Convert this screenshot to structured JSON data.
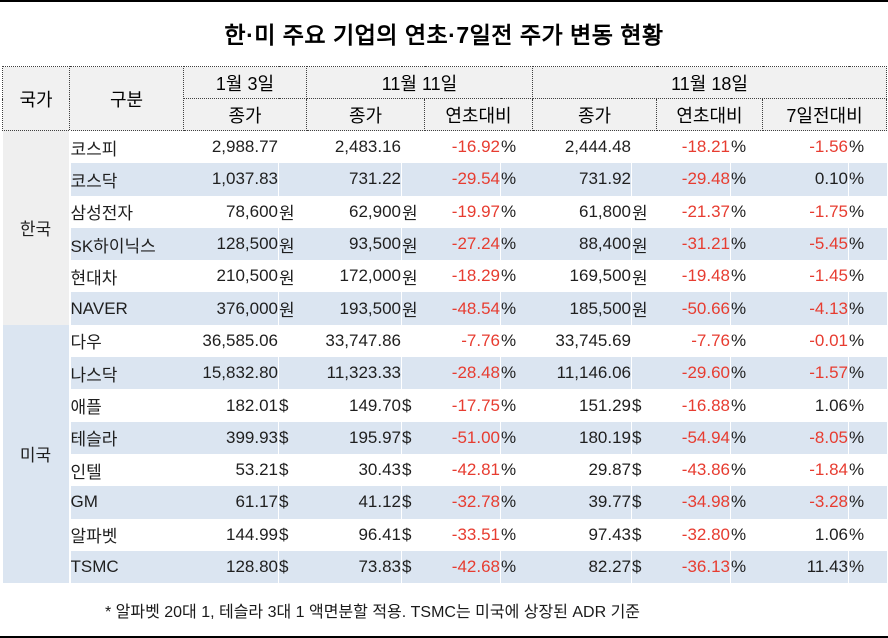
{
  "title": "한·미 주요 기업의 연초·7일전 주가 변동 현황",
  "footnote": "* 알파벳 20대 1, 테슬라 3대 1 액면분할 적용. TSMC는 미국에 상장된 ADR 기준",
  "colors": {
    "negative_value": "#e73c30",
    "stripe_row": "#dbe5f1",
    "korea_country_cell": "#efefef",
    "us_country_cell": "#dbe5f1",
    "header_bg": "#f1f1f1"
  },
  "table": {
    "header": {
      "country": "국가",
      "category": "구분",
      "jan3": "1월 3일",
      "nov11": "11월 11일",
      "nov18": "11월 18일",
      "close": "종가",
      "vs_start": "연초대비",
      "vs_7d": "7일전대비"
    },
    "pct_unit": "%",
    "groups": [
      {
        "country": "한국",
        "cls": "kr",
        "rows": [
          {
            "name": "코스피",
            "unit": "",
            "jan3": "2,988.77",
            "nov11": "2,483.16",
            "ytd11": "-16.92",
            "nov18": "2,444.48",
            "ytd18": "-18.21",
            "wow": "-1.56"
          },
          {
            "name": "코스닥",
            "unit": "",
            "jan3": "1,037.83",
            "nov11": "731.22",
            "ytd11": "-29.54",
            "nov18": "731.92",
            "ytd18": "-29.48",
            "wow": "0.10"
          },
          {
            "name": "삼성전자",
            "unit": "원",
            "jan3": "78,600",
            "nov11": "62,900",
            "ytd11": "-19.97",
            "nov18": "61,800",
            "ytd18": "-21.37",
            "wow": "-1.75"
          },
          {
            "name": "SK하이닉스",
            "unit": "원",
            "jan3": "128,500",
            "nov11": "93,500",
            "ytd11": "-27.24",
            "nov18": "88,400",
            "ytd18": "-31.21",
            "wow": "-5.45"
          },
          {
            "name": "현대차",
            "unit": "원",
            "jan3": "210,500",
            "nov11": "172,000",
            "ytd11": "-18.29",
            "nov18": "169,500",
            "ytd18": "-19.48",
            "wow": "-1.45"
          },
          {
            "name": "NAVER",
            "unit": "원",
            "jan3": "376,000",
            "nov11": "193,500",
            "ytd11": "-48.54",
            "nov18": "185,500",
            "ytd18": "-50.66",
            "wow": "-4.13"
          }
        ]
      },
      {
        "country": "미국",
        "cls": "us",
        "rows": [
          {
            "name": "다우",
            "unit": "",
            "jan3": "36,585.06",
            "nov11": "33,747.86",
            "ytd11": "-7.76",
            "nov18": "33,745.69",
            "ytd18": "-7.76",
            "wow": "-0.01"
          },
          {
            "name": "나스닥",
            "unit": "",
            "jan3": "15,832.80",
            "nov11": "11,323.33",
            "ytd11": "-28.48",
            "nov18": "11,146.06",
            "ytd18": "-29.60",
            "wow": "-1.57"
          },
          {
            "name": "애플",
            "unit": "$",
            "jan3": "182.01",
            "nov11": "149.70",
            "ytd11": "-17.75",
            "nov18": "151.29",
            "ytd18": "-16.88",
            "wow": "1.06"
          },
          {
            "name": "테슬라",
            "unit": "$",
            "jan3": "399.93",
            "nov11": "195.97",
            "ytd11": "-51.00",
            "nov18": "180.19",
            "ytd18": "-54.94",
            "wow": "-8.05"
          },
          {
            "name": "인텔",
            "unit": "$",
            "jan3": "53.21",
            "nov11": "30.43",
            "ytd11": "-42.81",
            "nov18": "29.87",
            "ytd18": "-43.86",
            "wow": "-1.84"
          },
          {
            "name": "GM",
            "unit": "$",
            "jan3": "61.17",
            "nov11": "41.12",
            "ytd11": "-32.78",
            "nov18": "39.77",
            "ytd18": "-34.98",
            "wow": "-3.28"
          },
          {
            "name": "알파벳",
            "unit": "$",
            "jan3": "144.99",
            "nov11": "96.41",
            "ytd11": "-33.51",
            "nov18": "97.43",
            "ytd18": "-32.80",
            "wow": "1.06"
          },
          {
            "name": "TSMC",
            "unit": "$",
            "jan3": "128.80",
            "nov11": "73.83",
            "ytd11": "-42.68",
            "nov18": "82.27",
            "ytd18": "-36.13",
            "wow": "11.43"
          }
        ]
      }
    ]
  },
  "chart_data": {
    "type": "table",
    "title": "한·미 주요 기업의 연초·7일전 주가 변동 현황",
    "columns": [
      "국가",
      "구분",
      "1월 3일 종가",
      "11월 11일 종가",
      "11월 11일 연초대비 %",
      "11월 18일 종가",
      "11월 18일 연초대비 %",
      "11월 18일 7일전대비 %"
    ],
    "rows": [
      [
        "한국",
        "코스피",
        2988.77,
        2483.16,
        -16.92,
        2444.48,
        -18.21,
        -1.56
      ],
      [
        "한국",
        "코스닥",
        1037.83,
        731.22,
        -29.54,
        731.92,
        -29.48,
        0.1
      ],
      [
        "한국",
        "삼성전자",
        78600,
        62900,
        -19.97,
        61800,
        -21.37,
        -1.75
      ],
      [
        "한국",
        "SK하이닉스",
        128500,
        93500,
        -27.24,
        88400,
        -31.21,
        -5.45
      ],
      [
        "한국",
        "현대차",
        210500,
        172000,
        -18.29,
        169500,
        -19.48,
        -1.45
      ],
      [
        "한국",
        "NAVER",
        376000,
        193500,
        -48.54,
        185500,
        -50.66,
        -4.13
      ],
      [
        "미국",
        "다우",
        36585.06,
        33747.86,
        -7.76,
        33745.69,
        -7.76,
        -0.01
      ],
      [
        "미국",
        "나스닥",
        15832.8,
        11323.33,
        -28.48,
        11146.06,
        -29.6,
        -1.57
      ],
      [
        "미국",
        "애플",
        182.01,
        149.7,
        -17.75,
        151.29,
        -16.88,
        1.06
      ],
      [
        "미국",
        "테슬라",
        399.93,
        195.97,
        -51.0,
        180.19,
        -54.94,
        -8.05
      ],
      [
        "미국",
        "인텔",
        53.21,
        30.43,
        -42.81,
        29.87,
        -43.86,
        -1.84
      ],
      [
        "미국",
        "GM",
        61.17,
        41.12,
        -32.78,
        39.77,
        -34.98,
        -3.28
      ],
      [
        "미국",
        "알파벳",
        144.99,
        96.41,
        -33.51,
        97.43,
        -32.8,
        1.06
      ],
      [
        "미국",
        "TSMC",
        128.8,
        73.83,
        -42.68,
        82.27,
        -36.13,
        11.43
      ]
    ],
    "units": {
      "한국 주가": "원",
      "미국 주가": "$",
      "대비": "%"
    },
    "footnote": "* 알파벳 20대 1, 테슬라 3대 1 액면분할 적용. TSMC는 미국에 상장된 ADR 기준"
  }
}
